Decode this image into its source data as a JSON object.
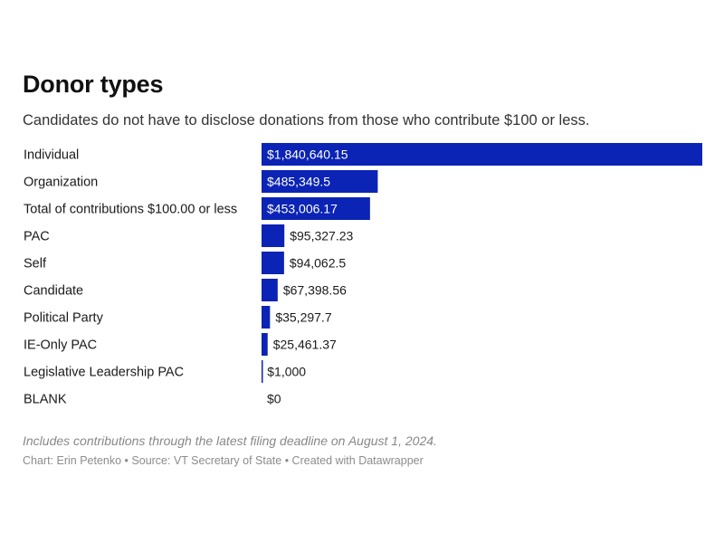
{
  "header": {
    "title": "Donor types",
    "subtitle": "Candidates do not have to disclose donations from those who contribute $100 or less."
  },
  "footer": {
    "notes": "Includes contributions through the latest filing deadline on August 1, 2024.",
    "byline": "Chart: Erin Petenko • Source: VT Secretary of State • Created with Datawrapper"
  },
  "colors": {
    "bar": "#0b24b5",
    "label_inside": "#ffffff",
    "label_outside": "#1a1a1a"
  },
  "chart_data": {
    "type": "bar",
    "orientation": "horizontal",
    "title": "Donor types",
    "xlabel": "",
    "ylabel": "",
    "xlim": [
      0,
      1840640.15
    ],
    "grid": false,
    "categories": [
      "Individual",
      "Organization",
      "Total of contributions $100.00 or less",
      "PAC",
      "Self",
      "Candidate",
      "Political Party",
      "IE-Only PAC",
      "Legislative Leadership PAC",
      "BLANK"
    ],
    "values": [
      1840640.15,
      485349.5,
      453006.17,
      95327.23,
      94062.5,
      67398.56,
      35297.7,
      25461.37,
      1000,
      0
    ],
    "value_labels": [
      "$1,840,640.15",
      "$485,349.5",
      "$453,006.17",
      "$95,327.23",
      "$94,062.5",
      "$67,398.56",
      "$35,297.7",
      "$25,461.37",
      "$1,000",
      "$0"
    ]
  }
}
